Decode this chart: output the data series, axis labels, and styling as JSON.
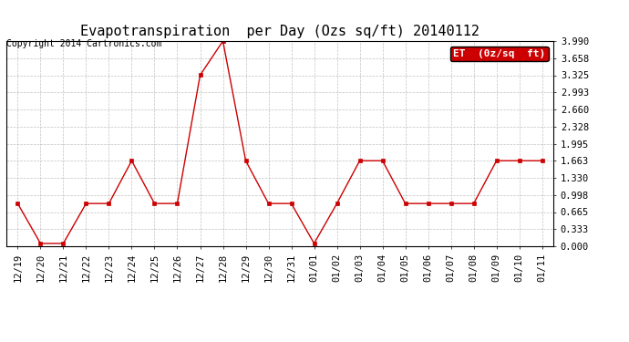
{
  "title": "Evapotranspiration  per Day (Ozs sq/ft) 20140112",
  "copyright": "Copyright 2014 Cartronics.com",
  "legend_label": "ET  (0z/sq  ft)",
  "x_labels": [
    "12/19",
    "12/20",
    "12/21",
    "12/22",
    "12/23",
    "12/24",
    "12/25",
    "12/26",
    "12/27",
    "12/28",
    "12/29",
    "12/30",
    "12/31",
    "01/01",
    "01/02",
    "01/03",
    "01/04",
    "01/05",
    "01/06",
    "01/07",
    "01/08",
    "01/09",
    "01/10",
    "01/11"
  ],
  "y_values": [
    0.831,
    0.055,
    0.055,
    0.831,
    0.831,
    1.663,
    0.831,
    0.831,
    3.326,
    3.99,
    1.663,
    0.831,
    0.831,
    0.055,
    0.831,
    1.663,
    1.663,
    0.831,
    0.831,
    0.831,
    0.831,
    1.663,
    1.663,
    1.663
  ],
  "y_ticks": [
    0.0,
    0.333,
    0.665,
    0.998,
    1.33,
    1.663,
    1.995,
    2.328,
    2.66,
    2.993,
    3.325,
    3.658,
    3.99
  ],
  "line_color": "#cc0000",
  "marker_color": "#cc0000",
  "background_color": "#ffffff",
  "grid_color": "#bbbbbb",
  "legend_bg": "#cc0000",
  "legend_text_color": "#ffffff",
  "title_fontsize": 11,
  "copyright_fontsize": 7,
  "tick_fontsize": 7.5,
  "legend_fontsize": 8,
  "ylim_max": 3.99
}
